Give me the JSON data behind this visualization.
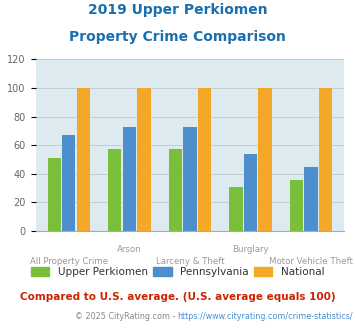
{
  "title_line1": "2019 Upper Perkiomen",
  "title_line2": "Property Crime Comparison",
  "title_color": "#1a6faf",
  "categories": [
    "All Property Crime",
    "Arson",
    "Larceny & Theft",
    "Burglary",
    "Motor Vehicle Theft"
  ],
  "series": {
    "Upper Perkiomen": [
      51,
      57,
      57,
      31,
      36
    ],
    "Pennsylvania": [
      67,
      73,
      73,
      54,
      45
    ],
    "National": [
      100,
      100,
      100,
      100,
      100
    ]
  },
  "colors": {
    "Upper Perkiomen": "#7abf3a",
    "Pennsylvania": "#4d8fcc",
    "National": "#f5a827"
  },
  "ylim": [
    0,
    120
  ],
  "yticks": [
    0,
    20,
    40,
    60,
    80,
    100,
    120
  ],
  "grid_color": "#bbcccc",
  "bg_color": "#ddeaf0",
  "legend_label_color": "#333333",
  "footer_text": "Compared to U.S. average. (U.S. average equals 100)",
  "footer_color": "#cc2200",
  "copyright_text1": "© 2025 CityRating.com - ",
  "copyright_text2": "https://www.cityrating.com/crime-statistics/",
  "copyright_color1": "#888888",
  "copyright_color2": "#4d8fcc",
  "bar_width": 0.24,
  "top_xlabels": [
    [
      1,
      "Arson"
    ],
    [
      3,
      "Burglary"
    ]
  ],
  "bottom_xlabels": [
    [
      0,
      "All Property Crime"
    ],
    [
      2,
      "Larceny & Theft"
    ],
    [
      4,
      "Motor Vehicle Theft"
    ]
  ]
}
